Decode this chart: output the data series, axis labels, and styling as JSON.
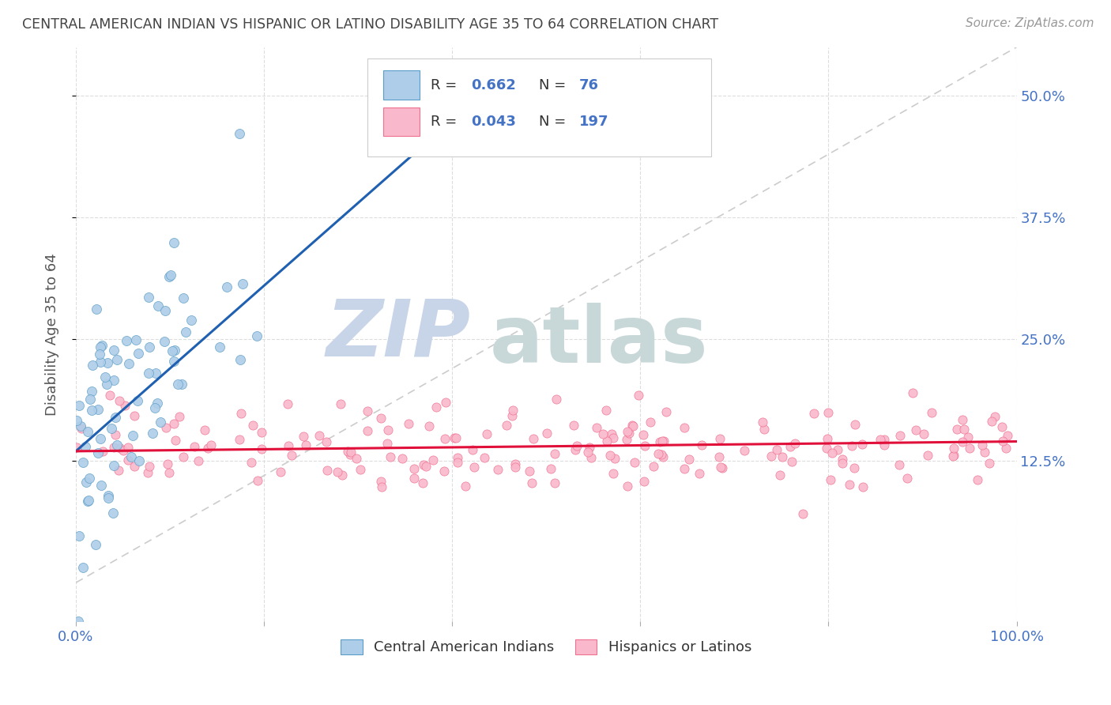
{
  "title": "CENTRAL AMERICAN INDIAN VS HISPANIC OR LATINO DISABILITY AGE 35 TO 64 CORRELATION CHART",
  "source": "Source: ZipAtlas.com",
  "ylabel": "Disability Age 35 to 64",
  "xlim": [
    0,
    1.0
  ],
  "ylim": [
    -0.04,
    0.55
  ],
  "xticks": [
    0.0,
    0.2,
    0.4,
    0.6,
    0.8,
    1.0
  ],
  "xticklabels": [
    "0.0%",
    "",
    "",
    "",
    "",
    "100.0%"
  ],
  "ytick_positions": [
    0.125,
    0.25,
    0.375,
    0.5
  ],
  "ytick_labels": [
    "12.5%",
    "25.0%",
    "37.5%",
    "50.0%"
  ],
  "blue_R": 0.662,
  "blue_N": 76,
  "pink_R": 0.043,
  "pink_N": 197,
  "blue_fill_color": "#aecde8",
  "blue_edge_color": "#5a9dc8",
  "pink_fill_color": "#f9b8cb",
  "pink_edge_color": "#f07090",
  "blue_line_color": "#2060b0",
  "pink_line_color": "#e0103a",
  "diagonal_color": "#cccccc",
  "background_color": "#ffffff",
  "grid_color": "#dddddd",
  "legend_label_blue": "Central American Indians",
  "legend_label_pink": "Hispanics or Latinos",
  "title_color": "#444444",
  "axis_label_color": "#4472c4",
  "legend_R_color": "#4472c4",
  "watermark_zip_color": "#c8d4e8",
  "watermark_atlas_color": "#c8d8d8"
}
